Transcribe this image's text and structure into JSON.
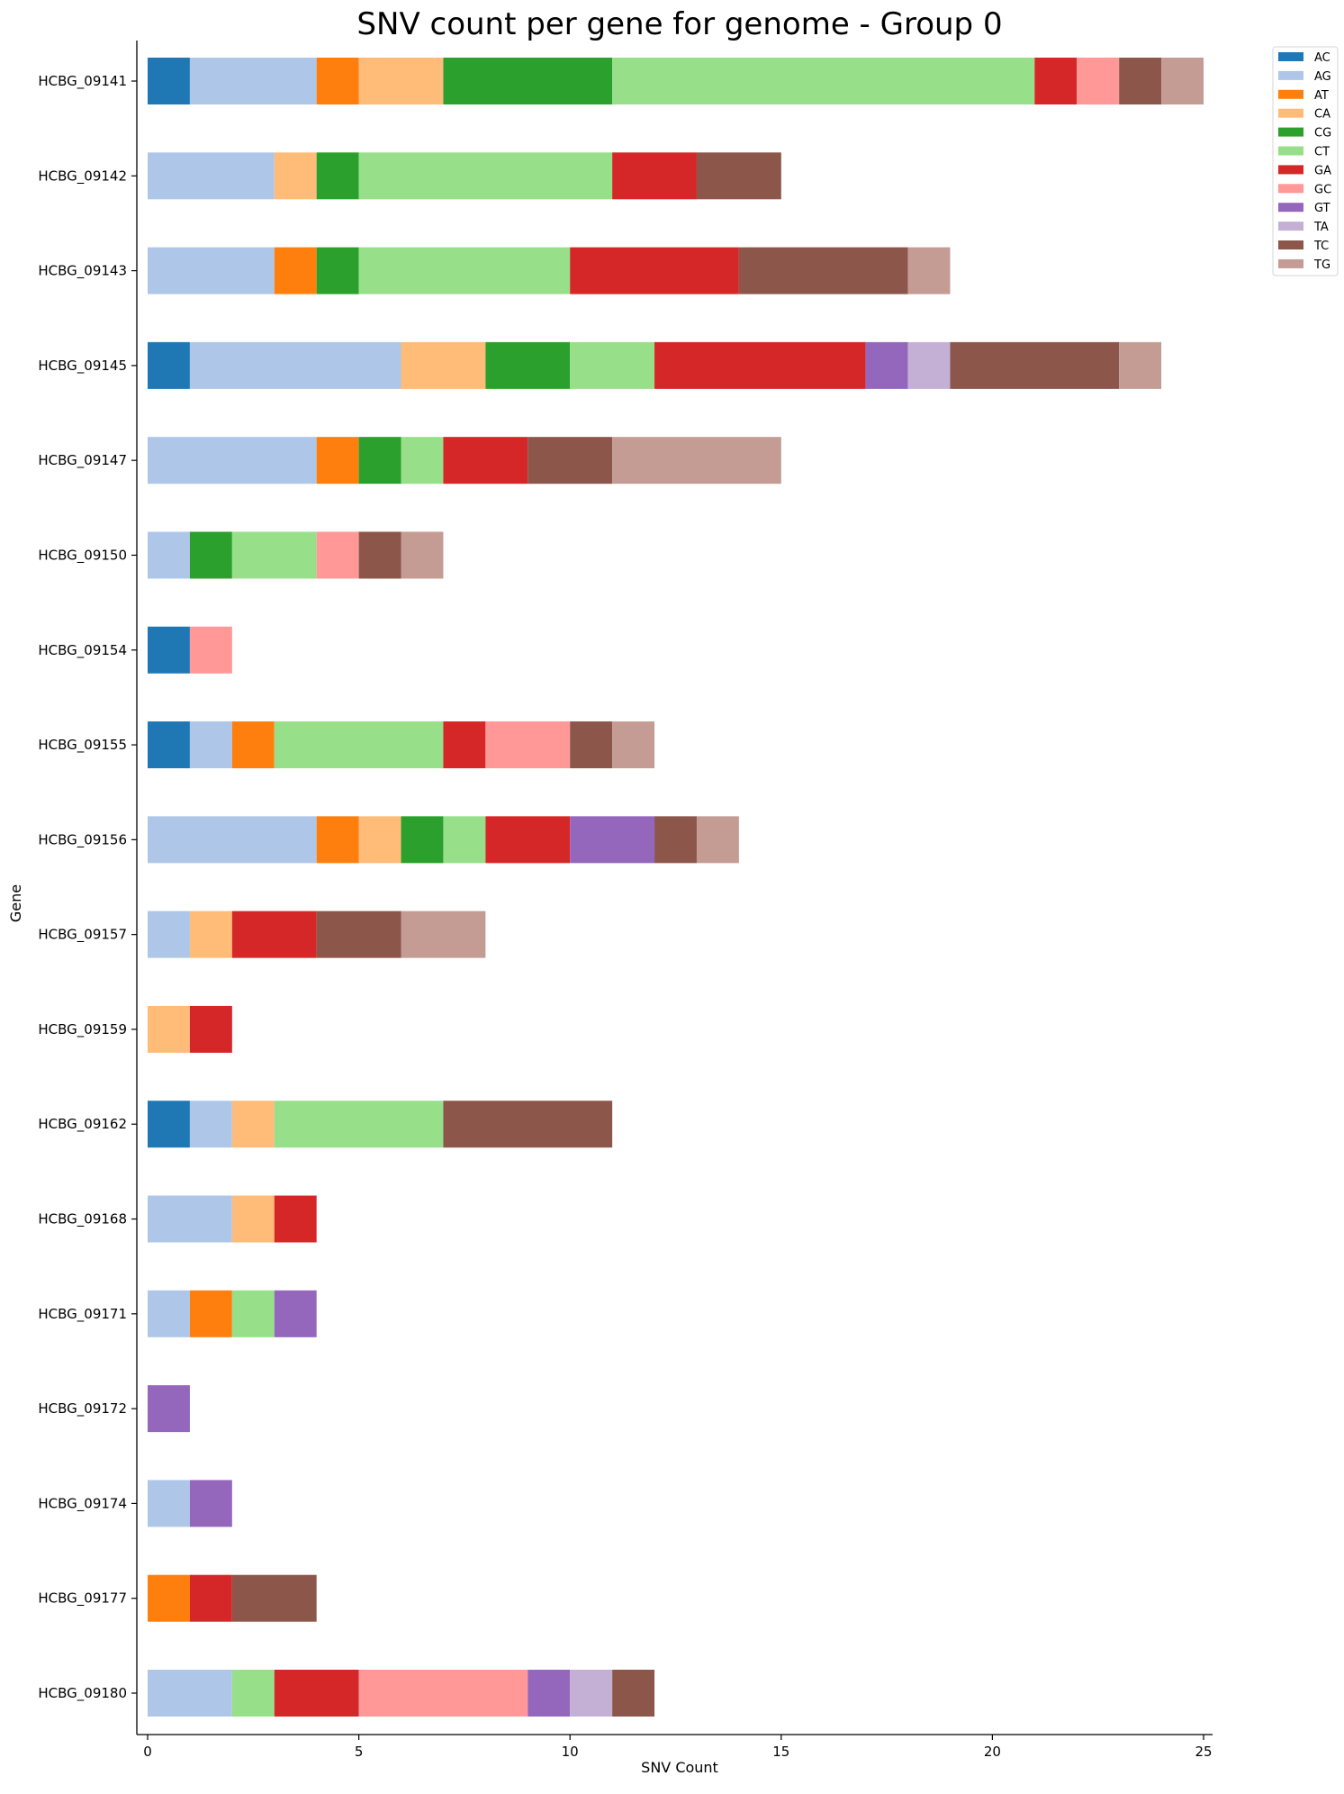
{
  "chart_data": {
    "type": "bar",
    "orientation": "horizontal",
    "stacked": true,
    "title": "SNV count per gene for genome - Group 0",
    "xlabel": "SNV Count",
    "ylabel": "Gene",
    "xlim": [
      0,
      25
    ],
    "xticks": [
      0,
      5,
      10,
      15,
      20,
      25
    ],
    "grid": false,
    "legend_position": "top-right, outside plot",
    "categories": [
      "HCBG_09141",
      "HCBG_09142",
      "HCBG_09143",
      "HCBG_09145",
      "HCBG_09147",
      "HCBG_09150",
      "HCBG_09154",
      "HCBG_09155",
      "HCBG_09156",
      "HCBG_09157",
      "HCBG_09159",
      "HCBG_09162",
      "HCBG_09168",
      "HCBG_09171",
      "HCBG_09172",
      "HCBG_09174",
      "HCBG_09177",
      "HCBG_09180"
    ],
    "series": [
      {
        "name": "AC",
        "color": "#1f77b4",
        "values": [
          1,
          0,
          0,
          1,
          0,
          0,
          1,
          1,
          0,
          0,
          0,
          1,
          0,
          0,
          0,
          0,
          0,
          0
        ]
      },
      {
        "name": "AG",
        "color": "#aec7e8",
        "values": [
          3,
          3,
          3,
          5,
          4,
          1,
          0,
          1,
          4,
          1,
          0,
          1,
          2,
          1,
          0,
          1,
          0,
          2
        ]
      },
      {
        "name": "AT",
        "color": "#ff7f0e",
        "values": [
          1,
          0,
          1,
          0,
          1,
          0,
          0,
          1,
          1,
          0,
          0,
          0,
          0,
          1,
          0,
          0,
          1,
          0
        ]
      },
      {
        "name": "CA",
        "color": "#ffbb78",
        "values": [
          2,
          1,
          0,
          2,
          0,
          0,
          0,
          0,
          1,
          1,
          1,
          1,
          1,
          0,
          0,
          0,
          0,
          0
        ]
      },
      {
        "name": "CG",
        "color": "#2ca02c",
        "values": [
          4,
          1,
          1,
          2,
          1,
          1,
          0,
          0,
          1,
          0,
          0,
          0,
          0,
          0,
          0,
          0,
          0,
          0
        ]
      },
      {
        "name": "CT",
        "color": "#98df8a",
        "values": [
          10,
          6,
          5,
          2,
          1,
          2,
          0,
          4,
          1,
          0,
          0,
          4,
          0,
          1,
          0,
          0,
          0,
          1
        ]
      },
      {
        "name": "GA",
        "color": "#d62728",
        "values": [
          1,
          2,
          4,
          5,
          2,
          0,
          0,
          1,
          2,
          2,
          1,
          0,
          1,
          0,
          0,
          0,
          1,
          2
        ]
      },
      {
        "name": "GC",
        "color": "#ff9896",
        "values": [
          1,
          0,
          0,
          0,
          0,
          1,
          1,
          2,
          0,
          0,
          0,
          0,
          0,
          0,
          0,
          0,
          0,
          4
        ]
      },
      {
        "name": "GT",
        "color": "#9467bd",
        "values": [
          0,
          0,
          0,
          1,
          0,
          0,
          0,
          0,
          2,
          0,
          0,
          0,
          0,
          1,
          1,
          1,
          0,
          1
        ]
      },
      {
        "name": "TA",
        "color": "#c5b0d5",
        "values": [
          0,
          0,
          0,
          1,
          0,
          0,
          0,
          0,
          0,
          0,
          0,
          0,
          0,
          0,
          0,
          0,
          0,
          1
        ]
      },
      {
        "name": "TC",
        "color": "#8c564b",
        "values": [
          1,
          2,
          4,
          4,
          2,
          1,
          0,
          1,
          1,
          2,
          0,
          4,
          0,
          0,
          0,
          0,
          2,
          1
        ]
      },
      {
        "name": "TG",
        "color": "#c49c94",
        "values": [
          1,
          0,
          1,
          1,
          4,
          1,
          0,
          1,
          1,
          2,
          0,
          0,
          0,
          0,
          0,
          0,
          0,
          0
        ]
      }
    ]
  }
}
